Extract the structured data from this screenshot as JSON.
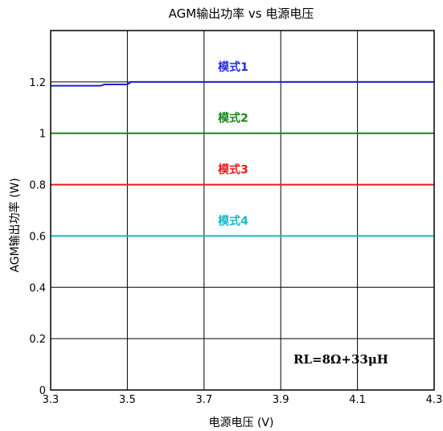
{
  "chart_data": {
    "type": "line",
    "title": "AGM输出功率 vs 电源电压",
    "xlabel": "电源电压 (V)",
    "ylabel": "AGM输出功率 (W)",
    "xlim": [
      3.3,
      4.3
    ],
    "ylim": [
      0,
      1.4
    ],
    "x_ticks": [
      3.3,
      3.5,
      3.7,
      3.9,
      4.1,
      4.3
    ],
    "x_tick_labels": [
      "3.3",
      "3.5",
      "3.7",
      "3.9",
      "4.1",
      "4.3"
    ],
    "y_ticks": [
      0,
      0.2,
      0.4,
      0.6,
      0.8,
      1.0,
      1.2
    ],
    "y_tick_labels": [
      "0",
      "0.2",
      "0.4",
      "0.6",
      "0.8",
      "1",
      "1.2"
    ],
    "grid": true,
    "series": [
      {
        "name": "模式1",
        "color": "#1f1fcf",
        "x": [
          3.3,
          3.43,
          3.44,
          3.5,
          3.51,
          4.3
        ],
        "y": [
          1.185,
          1.185,
          1.19,
          1.19,
          1.2,
          1.2
        ]
      },
      {
        "name": "模式2",
        "color": "#178a17",
        "x": [
          3.3,
          4.3
        ],
        "y": [
          1.0,
          1.0
        ]
      },
      {
        "name": "模式3",
        "color": "#ee1b1b",
        "x": [
          3.3,
          4.3
        ],
        "y": [
          0.8,
          0.8
        ]
      },
      {
        "name": "模式4",
        "color": "#19b9c9",
        "x": [
          3.3,
          4.3
        ],
        "y": [
          0.6,
          0.6
        ]
      }
    ],
    "series_labels_color": {
      "模式1": "#2233dd",
      "模式2": "#168816",
      "模式3": "#e81c1c",
      "模式4": "#1ab8c8"
    },
    "annotation": "RL=8Ω+33μH"
  }
}
